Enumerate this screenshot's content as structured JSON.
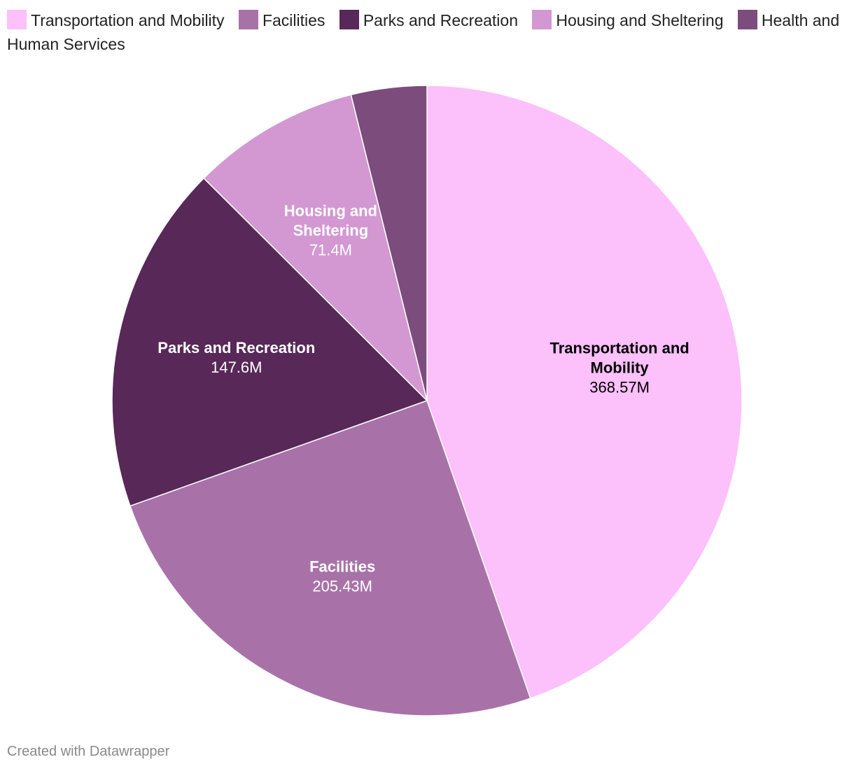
{
  "chart_data": {
    "type": "pie",
    "title": "",
    "slices": [
      {
        "label": "Transportation and Mobility",
        "value": 368.57,
        "display": "368.57M",
        "color": "#fcc0fa",
        "label_lines": [
          "Transportation and",
          "Mobility"
        ],
        "label_color": "#000000"
      },
      {
        "label": "Facilities",
        "value": 205.43,
        "display": "205.43M",
        "color": "#a872a9",
        "label_lines": [
          "Facilities"
        ],
        "label_color": "#ffffff"
      },
      {
        "label": "Parks and Recreation",
        "value": 147.6,
        "display": "147.6M",
        "color": "#572858",
        "label_lines": [
          "Parks and Recreation"
        ],
        "label_color": "#ffffff"
      },
      {
        "label": "Housing and Sheltering",
        "value": 71.4,
        "display": "71.4M",
        "color": "#d398d2",
        "label_lines": [
          "Housing and",
          "Sheltering"
        ],
        "label_color": "#ffffff"
      },
      {
        "label": "Health and Human Services",
        "value": 32.0,
        "display": "",
        "color": "#7c4c7d",
        "label_lines": [],
        "label_color": "#ffffff"
      }
    ],
    "legend_position": "top-left"
  },
  "footer": {
    "credit": "Created with Datawrapper"
  }
}
